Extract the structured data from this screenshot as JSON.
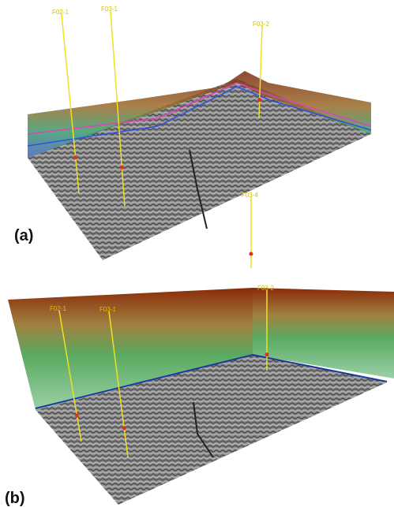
{
  "panels": [
    {
      "label": "(a)",
      "wells": [
        "F02-1",
        "F03-1",
        "F03-2",
        "F03-4"
      ]
    },
    {
      "label": "(b)",
      "wells": [
        "F02-1",
        "F03-1",
        "F03-2"
      ]
    }
  ]
}
